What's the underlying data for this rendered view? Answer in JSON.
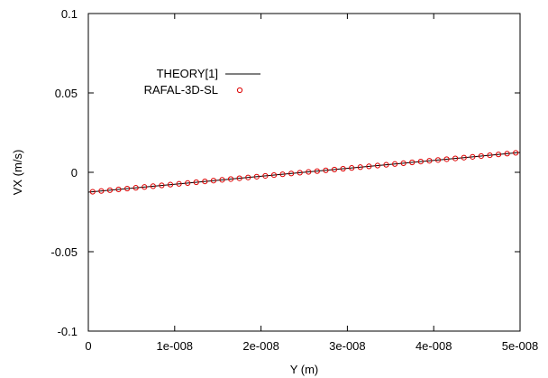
{
  "chart_data": {
    "type": "scatter",
    "xlabel": "Y (m)",
    "ylabel": "VX (m/s)",
    "xlim": [
      0,
      5e-08
    ],
    "ylim": [
      -0.1,
      0.1
    ],
    "x_ticks": [
      0,
      1e-08,
      2e-08,
      3e-08,
      4e-08,
      5e-08
    ],
    "x_tick_labels": [
      "0",
      "1e-008",
      "2e-008",
      "3e-008",
      "4e-008",
      "5e-008"
    ],
    "y_ticks": [
      -0.1,
      -0.05,
      0,
      0.05,
      0.1
    ],
    "y_tick_labels": [
      "-0.1",
      "-0.05",
      "0",
      "0.05",
      "0.1"
    ],
    "grid": false,
    "legend_position": "top-left",
    "series": [
      {
        "name": "THEORY[1]",
        "kind": "line",
        "color": "#000000",
        "x": [
          0,
          5e-08
        ],
        "y": [
          -0.0125,
          0.0125
        ]
      },
      {
        "name": "RAFAL-3D-SL",
        "kind": "markers",
        "marker": "open-circle",
        "color": "#dd0000",
        "x": [
          5e-10,
          1.5e-09,
          2.5e-09,
          3.5e-09,
          4.5e-09,
          5.5e-09,
          6.5e-09,
          7.5e-09,
          8.5e-09,
          9.5e-09,
          1.05e-08,
          1.15e-08,
          1.25e-08,
          1.35e-08,
          1.45e-08,
          1.55e-08,
          1.65e-08,
          1.75e-08,
          1.85e-08,
          1.95e-08,
          2.05e-08,
          2.15e-08,
          2.25e-08,
          2.35e-08,
          2.45e-08,
          2.55e-08,
          2.65e-08,
          2.75e-08,
          2.85e-08,
          2.95e-08,
          3.05e-08,
          3.15e-08,
          3.25e-08,
          3.35e-08,
          3.45e-08,
          3.55e-08,
          3.65e-08,
          3.75e-08,
          3.85e-08,
          3.95e-08,
          4.05e-08,
          4.15e-08,
          4.25e-08,
          4.35e-08,
          4.45e-08,
          4.55e-08,
          4.65e-08,
          4.75e-08,
          4.85e-08,
          4.95e-08
        ],
        "y": [
          -0.01225,
          -0.01175,
          -0.01125,
          -0.01075,
          -0.01025,
          -0.00975,
          -0.00925,
          -0.00875,
          -0.00825,
          -0.00775,
          -0.00725,
          -0.00675,
          -0.00625,
          -0.00575,
          -0.00525,
          -0.00475,
          -0.00425,
          -0.00375,
          -0.00325,
          -0.00275,
          -0.00225,
          -0.00175,
          -0.00125,
          -0.00075,
          -0.00025,
          0.00025,
          0.00075,
          0.00125,
          0.00175,
          0.00225,
          0.00275,
          0.00325,
          0.00375,
          0.00425,
          0.00475,
          0.00525,
          0.00575,
          0.00625,
          0.00675,
          0.00725,
          0.00775,
          0.00825,
          0.00875,
          0.00925,
          0.00975,
          0.01025,
          0.01075,
          0.01125,
          0.01175,
          0.01225
        ]
      }
    ]
  }
}
